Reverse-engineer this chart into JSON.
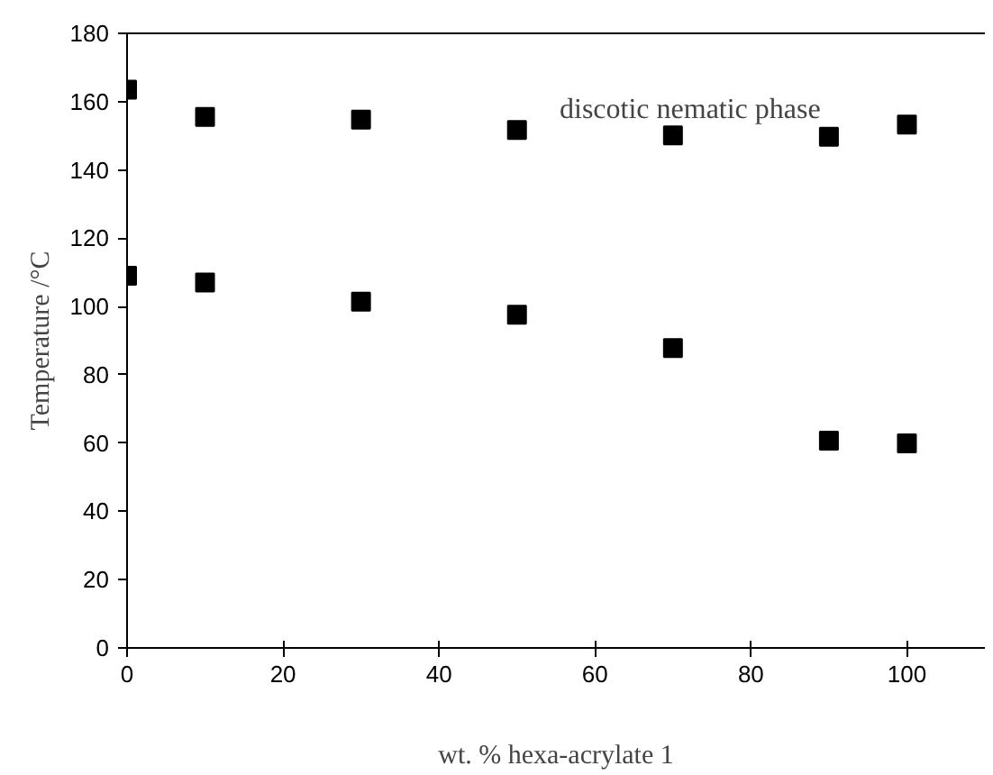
{
  "chart_data": {
    "type": "scatter",
    "xlabel": "wt. % hexa-acrylate 1",
    "ylabel": "Temperature /°C",
    "x": [
      0,
      10,
      30,
      50,
      70,
      90,
      100
    ],
    "series": [
      {
        "color": "#000000",
        "values": [
          163.5,
          155.5,
          154.7,
          151.7,
          150.1,
          149.7,
          153.3
        ]
      },
      {
        "color": "#000000",
        "values": [
          109,
          107,
          101.4,
          97.6,
          87.8,
          60.7,
          59.9
        ]
      }
    ],
    "xlim": [
      0,
      110
    ],
    "ylim": [
      0,
      180
    ],
    "xticks": [
      0,
      20,
      40,
      60,
      80,
      100
    ],
    "yticks": [
      0,
      20,
      40,
      60,
      80,
      100,
      120,
      140,
      160,
      180
    ],
    "annotations": [
      "discotic nematic phase"
    ],
    "marker": "square",
    "grid": false
  }
}
